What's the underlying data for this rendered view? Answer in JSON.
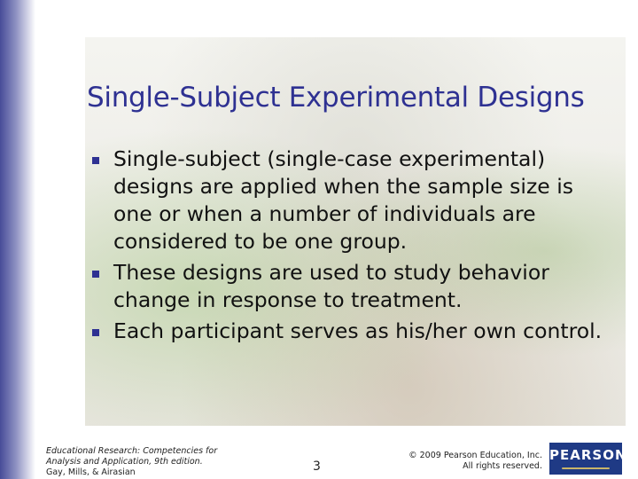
{
  "slide": {
    "title": "Single-Subject Experimental Designs",
    "bullets": [
      "Single-subject (single-case experimental) designs are applied when the sample size is one or when a number of individuals are considered to be one group.",
      "These designs are used to study behavior change in response to treatment.",
      "Each participant serves as his/her own control."
    ],
    "accent_color": "#2e3192"
  },
  "footer": {
    "book_line1": "Educational Research: Competencies for",
    "book_line2": "Analysis and Application, 9th edition.",
    "authors": "Gay, Mills, & Airasian",
    "page_number": "3",
    "copyright_line1": "© 2009 Pearson Education, Inc.",
    "copyright_line2": "All rights reserved.",
    "logo_text": "PEARSON"
  }
}
